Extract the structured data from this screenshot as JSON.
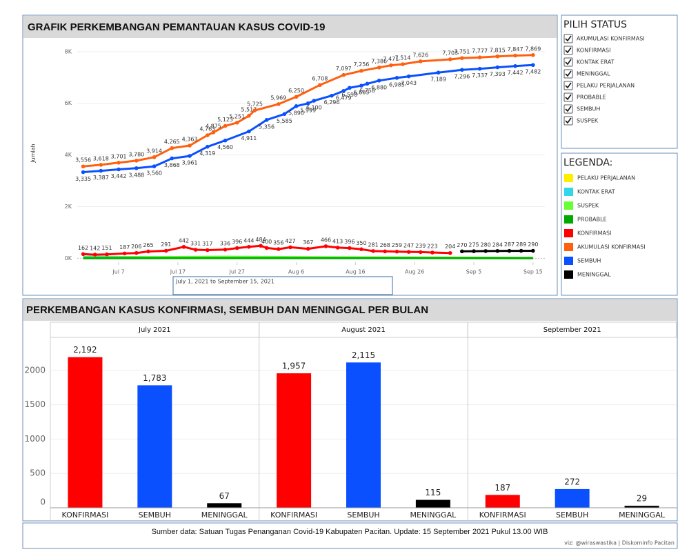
{
  "chart_data": [
    {
      "type": "line",
      "title": "GRAFIK PERKEMBANGAN PEMANTAUAN KASUS COVID-19",
      "y_label": "Jumlah",
      "date_range": "July 1, 2021 to September 15, 2021",
      "legend_title": "LEGENDA:",
      "xlim": [
        "2021-06-30",
        "2021-09-17"
      ],
      "xticks": [
        {
          "value": "2021-07-07",
          "label": "Jul 7"
        },
        {
          "value": "2021-07-17",
          "label": "Jul 17"
        },
        {
          "value": "2021-07-27",
          "label": "Jul 27"
        },
        {
          "value": "2021-08-06",
          "label": "Aug 6"
        },
        {
          "value": "2021-08-16",
          "label": "Aug 16"
        },
        {
          "value": "2021-08-26",
          "label": "Aug 26"
        },
        {
          "value": "2021-09-05",
          "label": "Sep 5"
        },
        {
          "value": "2021-09-15",
          "label": "Sep 15"
        }
      ],
      "ylim": [
        -150,
        8450
      ],
      "yticks": [
        {
          "value": 0,
          "label": "0K"
        },
        {
          "value": 2000,
          "label": "2K"
        },
        {
          "value": 4000,
          "label": "4K"
        },
        {
          "value": 6000,
          "label": "6K"
        },
        {
          "value": 8000,
          "label": "8K"
        }
      ],
      "grid": true,
      "series": [
        {
          "name": "PELAKU PERJALANAN",
          "color": "#ffee00",
          "x": [
            "2021-07-01",
            "2021-08-01",
            "2021-09-15"
          ],
          "values": [
            10,
            12,
            8
          ]
        },
        {
          "name": "KONTAK ERAT",
          "color": "#33d6e8",
          "x": [
            "2021-07-01",
            "2021-07-15",
            "2021-08-01",
            "2021-09-15"
          ],
          "values": [
            60,
            40,
            30,
            10
          ]
        },
        {
          "name": "SUSPEK",
          "color": "#66ff33",
          "x": [
            "2021-07-01",
            "2021-07-25",
            "2021-08-10",
            "2021-09-15"
          ],
          "values": [
            30,
            60,
            40,
            20
          ]
        },
        {
          "name": "PROBABLE",
          "color": "#00aa00",
          "x": [
            "2021-07-01",
            "2021-08-01",
            "2021-09-15"
          ],
          "values": [
            5,
            8,
            5
          ]
        },
        {
          "name": "KONFIRMASI",
          "color": "#ff0000",
          "x": [
            "2021-07-01",
            "2021-07-03",
            "2021-07-05",
            "2021-07-08",
            "2021-07-10",
            "2021-07-12",
            "2021-07-15",
            "2021-07-18",
            "2021-07-20",
            "2021-07-22",
            "2021-07-25",
            "2021-07-27",
            "2021-07-29",
            "2021-07-31",
            "2021-08-01",
            "2021-08-03",
            "2021-08-05",
            "2021-08-08",
            "2021-08-11",
            "2021-08-13",
            "2021-08-15",
            "2021-08-17",
            "2021-08-19",
            "2021-08-21",
            "2021-08-23",
            "2021-08-25",
            "2021-08-27",
            "2021-08-29",
            "2021-09-01"
          ],
          "values": [
            162,
            142,
            151,
            187,
            206,
            265,
            291,
            442,
            331,
            317,
            336,
            396,
            444,
            484,
            400,
            356,
            427,
            367,
            466,
            413,
            396,
            350,
            281,
            268,
            259,
            247,
            239,
            223,
            204
          ],
          "value_labels": [
            "162",
            "142",
            "151",
            "187",
            "206",
            "265",
            "291",
            "442",
            "331",
            "317",
            "336",
            "396",
            "444",
            "484",
            "400",
            "356",
            "427",
            "367",
            "466",
            "413",
            "396",
            "350",
            "281",
            "268",
            "259",
            "247",
            "239",
            "223",
            "204"
          ]
        },
        {
          "name": "AKUMULASI KONFIRMASI",
          "color": "#ff6010",
          "x": [
            "2021-07-01",
            "2021-07-04",
            "2021-07-07",
            "2021-07-10",
            "2021-07-13",
            "2021-07-16",
            "2021-07-19",
            "2021-07-22",
            "2021-07-23",
            "2021-07-25",
            "2021-07-27",
            "2021-07-29",
            "2021-07-30",
            "2021-08-03",
            "2021-08-06",
            "2021-08-10",
            "2021-08-14",
            "2021-08-17",
            "2021-08-20",
            "2021-08-22",
            "2021-08-24",
            "2021-08-27",
            "2021-09-01",
            "2021-09-03",
            "2021-09-06",
            "2021-09-09",
            "2021-09-12",
            "2021-09-15"
          ],
          "values": [
            3556,
            3618,
            3701,
            3780,
            3914,
            4265,
            4363,
            4763,
            4875,
            5123,
            5251,
            5517,
            5725,
            5969,
            6250,
            6708,
            7097,
            7256,
            7386,
            7471,
            7514,
            7626,
            7703,
            7751,
            7777,
            7815,
            7847,
            7869
          ],
          "value_labels": [
            "3,556",
            "3,618",
            "3,701",
            "3,780",
            "3,914",
            "4,265",
            "4,363",
            "4,763",
            "4,875",
            "5,123",
            "5,251",
            "5,517",
            "5,725",
            "5,969",
            "6,250",
            "6,708",
            "7,097",
            "7,256",
            "7,386",
            "7,471",
            "7,514",
            "7,626",
            "7,703",
            "7,751",
            "7,777",
            "7,815",
            "7,847",
            "7,869"
          ]
        },
        {
          "name": "SEMBUH",
          "color": "#0a50ff",
          "x": [
            "2021-07-01",
            "2021-07-04",
            "2021-07-07",
            "2021-07-10",
            "2021-07-13",
            "2021-07-16",
            "2021-07-19",
            "2021-07-22",
            "2021-07-25",
            "2021-07-29",
            "2021-08-01",
            "2021-08-04",
            "2021-08-06",
            "2021-08-08",
            "2021-08-09",
            "2021-08-12",
            "2021-08-14",
            "2021-08-15",
            "2021-08-17",
            "2021-08-18",
            "2021-08-20",
            "2021-08-23",
            "2021-08-25",
            "2021-08-30",
            "2021-09-03",
            "2021-09-06",
            "2021-09-09",
            "2021-09-12",
            "2021-09-15"
          ],
          "values": [
            3335,
            3387,
            3442,
            3488,
            3560,
            3868,
            3961,
            4319,
            4560,
            4911,
            5356,
            5585,
            5890,
            5999,
            6100,
            6296,
            6479,
            6598,
            6683,
            6758,
            6880,
            6985,
            7043,
            7189,
            7296,
            7337,
            7393,
            7442,
            7482
          ],
          "value_labels": [
            "3,335",
            "3,387",
            "3,442",
            "3,488",
            "3,560",
            "3,868",
            "3,961",
            "4,319",
            "4,560",
            "4,911",
            "5,356",
            "5,585",
            "5,890",
            "5,999",
            "6,100",
            "6,296",
            "6,479",
            "6,598",
            "6,683",
            "6,758",
            "6,880",
            "6,985",
            "7,043",
            "7,189",
            "7,296",
            "7,337",
            "7,393",
            "7,442",
            "7,482"
          ]
        },
        {
          "name": "MENINGGAL",
          "color": "#000000",
          "x": [
            "2021-09-03",
            "2021-09-05",
            "2021-09-07",
            "2021-09-09",
            "2021-09-11",
            "2021-09-13",
            "2021-09-15"
          ],
          "values": [
            270,
            275,
            280,
            284,
            287,
            289,
            290
          ],
          "value_labels": [
            "270",
            "275",
            "280",
            "284",
            "287",
            "289",
            "290"
          ]
        }
      ]
    },
    {
      "type": "bar",
      "title": "PERKEMBANGAN KASUS KONFIRMASI, SEMBUH DAN MENINGGAL PER BULAN",
      "categories": [
        "KONFIRMASI",
        "SEMBUH",
        "MENINGGAL"
      ],
      "colors": [
        "#ff0000",
        "#0a50ff",
        "#000000"
      ],
      "ylim": [
        0,
        2480
      ],
      "yticks": [
        0,
        500,
        1000,
        1500,
        2000
      ],
      "grid": true,
      "panels": [
        {
          "name": "July 2021",
          "values": [
            2192,
            1783,
            67
          ],
          "value_labels": [
            "2,192",
            "1,783",
            "67"
          ]
        },
        {
          "name": "August 2021",
          "values": [
            1957,
            2115,
            115
          ],
          "value_labels": [
            "1,957",
            "2,115",
            "115"
          ]
        },
        {
          "name": "September 2021",
          "values": [
            187,
            272,
            29
          ],
          "value_labels": [
            "187",
            "272",
            "29"
          ]
        }
      ]
    }
  ],
  "status_filter": {
    "title": "PILIH STATUS",
    "options": [
      "AKUMULASI KONFIRMASI",
      "KONFIRMASI",
      "KONTAK ERAT",
      "MENINGGAL",
      "PELAKU PERJALANAN",
      "PROBABLE",
      "SEMBUH",
      "SUSPEK"
    ]
  },
  "footer": {
    "source": "Sumber data: Satuan Tugas Penanganan Covid-19  Kabupaten Pacitan. Update: 15 September 2021 Pukul 13.00 WIB",
    "credit": "viz: @wiraswastika | Diskominfo Pacitan"
  }
}
